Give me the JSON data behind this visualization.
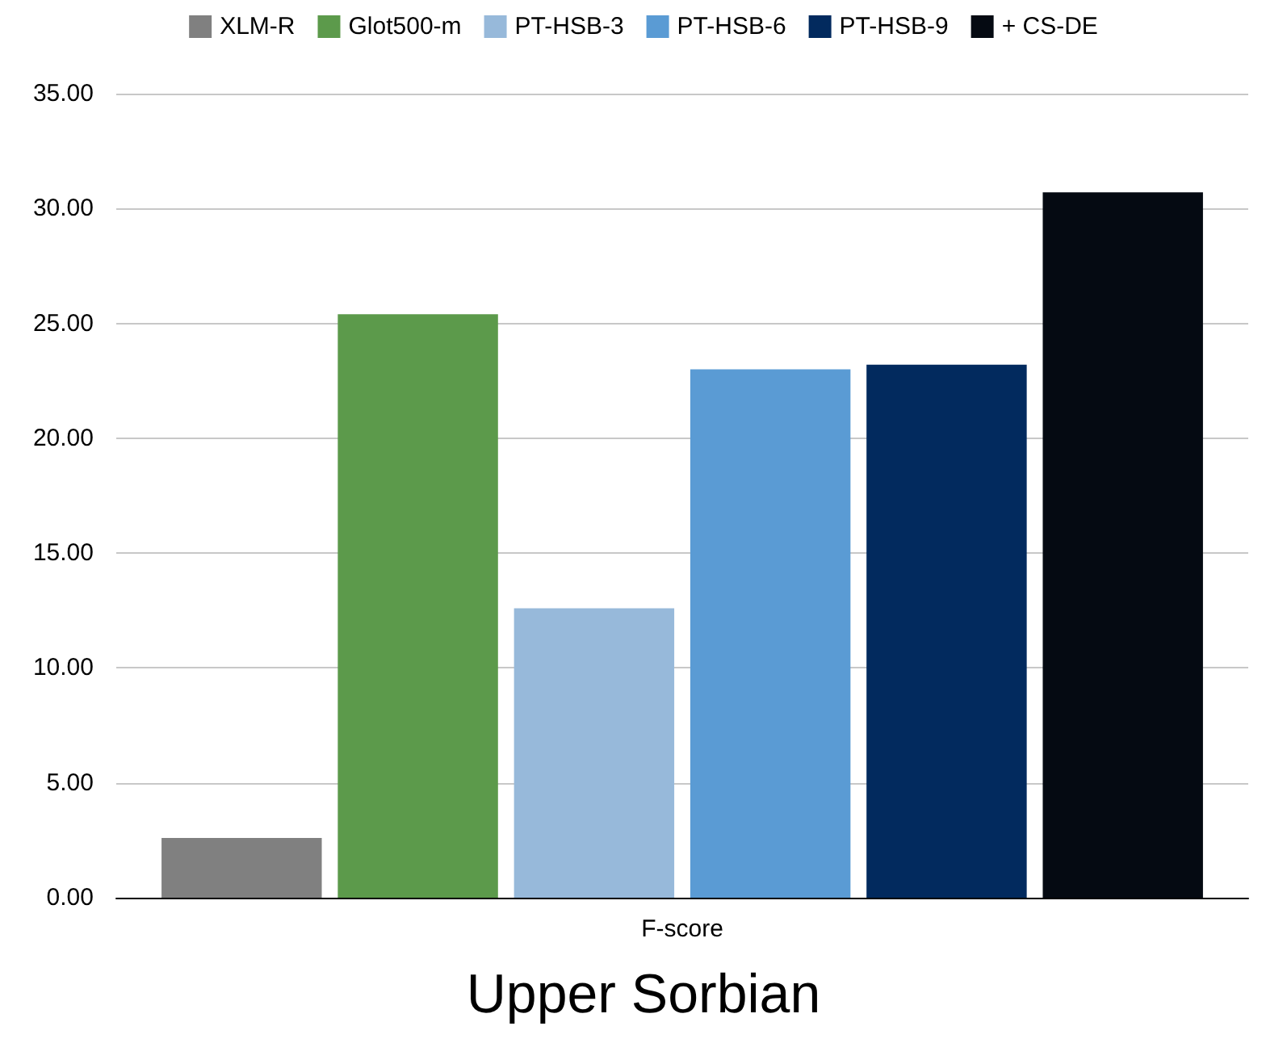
{
  "chart_data": {
    "type": "bar",
    "title": "Upper Sorbian",
    "categories": [
      "F-score"
    ],
    "series": [
      {
        "name": "XLM-R",
        "color": "#808080",
        "values": [
          2.6
        ]
      },
      {
        "name": "Glot500-m",
        "color": "#5c9a4b",
        "values": [
          25.4
        ]
      },
      {
        "name": "PT-HSB-3",
        "color": "#97b9da",
        "values": [
          12.6
        ]
      },
      {
        "name": "PT-HSB-6",
        "color": "#5a9bd4",
        "values": [
          23.0
        ]
      },
      {
        "name": "PT-HSB-9",
        "color": "#022a5e",
        "values": [
          23.2
        ]
      },
      {
        "name": "+ CS-DE",
        "color": "#050a12",
        "values": [
          30.7
        ]
      }
    ],
    "ylim": [
      0,
      35
    ],
    "yticks": [
      {
        "value": 0,
        "label": "0.00"
      },
      {
        "value": 5,
        "label": "5.00"
      },
      {
        "value": 10,
        "label": "10.00"
      },
      {
        "value": 15,
        "label": "15.00"
      },
      {
        "value": 20,
        "label": "20.00"
      },
      {
        "value": 25,
        "label": "25.00"
      },
      {
        "value": 30,
        "label": "30.00"
      },
      {
        "value": 35,
        "label": "35.00"
      }
    ],
    "grid": "y",
    "legend": "top"
  }
}
